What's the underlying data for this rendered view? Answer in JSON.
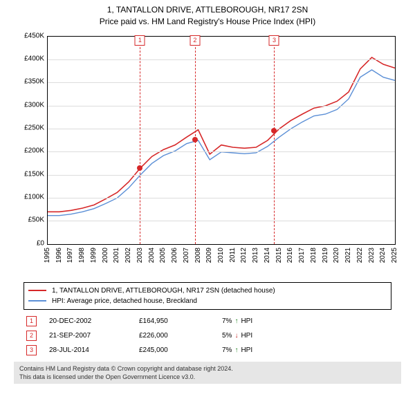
{
  "title": {
    "line1": "1, TANTALLON DRIVE, ATTLEBOROUGH, NR17 2SN",
    "line2": "Price paid vs. HM Land Registry's House Price Index (HPI)"
  },
  "chart": {
    "type": "line",
    "background_color": "#ffffff",
    "grid_color": "#dcdcdc",
    "axis_color": "#000000",
    "ylim": [
      0,
      450000
    ],
    "ytick_step": 50000,
    "yticks": [
      "£0",
      "£50K",
      "£100K",
      "£150K",
      "£200K",
      "£250K",
      "£300K",
      "£350K",
      "£400K",
      "£450K"
    ],
    "x_years": [
      1995,
      1996,
      1997,
      1998,
      1999,
      2000,
      2001,
      2002,
      2003,
      2004,
      2005,
      2006,
      2007,
      2008,
      2009,
      2010,
      2011,
      2012,
      2013,
      2014,
      2015,
      2016,
      2017,
      2018,
      2019,
      2020,
      2021,
      2022,
      2023,
      2024,
      2025
    ],
    "series_red": {
      "label": "1, TANTALLON DRIVE, ATTLEBOROUGH, NR17 2SN (detached house)",
      "color": "#d62728",
      "line_width": 1.6,
      "values_by_year": {
        "1995": 70000,
        "1996": 70000,
        "1997": 73000,
        "1998": 78000,
        "1999": 85000,
        "2000": 98000,
        "2001": 112000,
        "2002": 135000,
        "2003": 165000,
        "2004": 190000,
        "2005": 205000,
        "2006": 215000,
        "2007": 232000,
        "2008": 248000,
        "2009": 195000,
        "2010": 215000,
        "2011": 210000,
        "2012": 208000,
        "2013": 210000,
        "2014": 225000,
        "2015": 250000,
        "2016": 268000,
        "2017": 282000,
        "2018": 295000,
        "2019": 300000,
        "2020": 310000,
        "2021": 330000,
        "2022": 380000,
        "2023": 405000,
        "2024": 390000,
        "2025": 382000
      }
    },
    "series_blue": {
      "label": "HPI: Average price, detached house, Breckland",
      "color": "#5b8fd6",
      "line_width": 1.4,
      "values_by_year": {
        "1995": 62000,
        "1996": 62000,
        "1997": 65000,
        "1998": 70000,
        "1999": 77000,
        "2000": 88000,
        "2001": 100000,
        "2002": 122000,
        "2003": 150000,
        "2004": 175000,
        "2005": 192000,
        "2006": 202000,
        "2007": 218000,
        "2008": 225000,
        "2009": 183000,
        "2010": 200000,
        "2011": 198000,
        "2012": 196000,
        "2013": 198000,
        "2014": 212000,
        "2015": 232000,
        "2016": 250000,
        "2017": 265000,
        "2018": 278000,
        "2019": 282000,
        "2020": 292000,
        "2021": 315000,
        "2022": 362000,
        "2023": 378000,
        "2024": 362000,
        "2025": 355000
      }
    },
    "events": [
      {
        "n": "1",
        "year": 2002.97,
        "price": 164950
      },
      {
        "n": "2",
        "year": 2007.72,
        "price": 226000
      },
      {
        "n": "3",
        "year": 2014.57,
        "price": 245000
      }
    ]
  },
  "legend": [
    {
      "color": "#d62728",
      "label": "1, TANTALLON DRIVE, ATTLEBOROUGH, NR17 2SN (detached house)"
    },
    {
      "color": "#5b8fd6",
      "label": "HPI: Average price, detached house, Breckland"
    }
  ],
  "transactions": [
    {
      "n": "1",
      "date": "20-DEC-2002",
      "price": "£164,950",
      "delta_pct": "7%",
      "arrow": "↑",
      "arrow_color": "#1a7f1a",
      "suffix": "HPI"
    },
    {
      "n": "2",
      "date": "21-SEP-2007",
      "price": "£226,000",
      "delta_pct": "5%",
      "arrow": "↓",
      "arrow_color": "#c02020",
      "suffix": "HPI"
    },
    {
      "n": "3",
      "date": "28-JUL-2014",
      "price": "£245,000",
      "delta_pct": "7%",
      "arrow": "↑",
      "arrow_color": "#1a7f1a",
      "suffix": "HPI"
    }
  ],
  "footer": {
    "line1": "Contains HM Land Registry data © Crown copyright and database right 2024.",
    "line2": "This data is licensed under the Open Government Licence v3.0."
  }
}
